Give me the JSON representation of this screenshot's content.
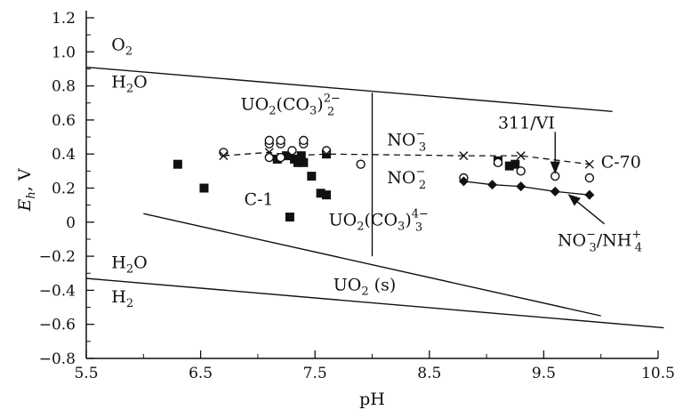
{
  "chart_data": {
    "type": "scatter",
    "xlabel": "pH",
    "ylabel": "E_h, V",
    "xlim": [
      5.5,
      10.6
    ],
    "ylim": [
      -0.8,
      1.25
    ],
    "x_ticks": [
      "5.5",
      "6.5",
      "7.5",
      "8.5",
      "9.5",
      "10.5"
    ],
    "y_ticks": [
      "−0.8",
      "−0.6",
      "−0.4",
      "−0.2",
      "0",
      "0.2",
      "0.4",
      "0.6",
      "0.8",
      "1.0",
      "1.2"
    ],
    "grid": false,
    "series": [
      {
        "marker": "filled-square",
        "points": [
          [
            6.3,
            0.34
          ],
          [
            6.53,
            0.2
          ],
          [
            7.17,
            0.37
          ],
          [
            7.25,
            0.39
          ],
          [
            7.32,
            0.37
          ],
          [
            7.35,
            0.35
          ],
          [
            7.38,
            0.39
          ],
          [
            7.4,
            0.35
          ],
          [
            7.47,
            0.27
          ],
          [
            7.28,
            0.03
          ],
          [
            7.55,
            0.17
          ],
          [
            7.6,
            0.16
          ],
          [
            7.6,
            0.4
          ],
          [
            9.1,
            0.36
          ],
          [
            9.2,
            0.33
          ],
          [
            9.25,
            0.34
          ]
        ]
      },
      {
        "marker": "open-circle",
        "points": [
          [
            6.7,
            0.41
          ],
          [
            7.1,
            0.38
          ],
          [
            7.1,
            0.46
          ],
          [
            7.1,
            0.48
          ],
          [
            7.2,
            0.38
          ],
          [
            7.2,
            0.46
          ],
          [
            7.2,
            0.48
          ],
          [
            7.3,
            0.42
          ],
          [
            7.4,
            0.46
          ],
          [
            7.4,
            0.48
          ],
          [
            7.6,
            0.42
          ],
          [
            7.9,
            0.34
          ],
          [
            8.8,
            0.26
          ],
          [
            9.1,
            0.35
          ],
          [
            9.3,
            0.3
          ],
          [
            9.6,
            0.27
          ],
          [
            9.9,
            0.26
          ]
        ]
      },
      {
        "marker": "cross",
        "line": "dashed",
        "points": [
          [
            6.7,
            0.39
          ],
          [
            7.1,
            0.41
          ],
          [
            7.3,
            0.39
          ],
          [
            7.6,
            0.4
          ],
          [
            8.8,
            0.39
          ],
          [
            9.3,
            0.39
          ],
          [
            9.9,
            0.34
          ]
        ]
      },
      {
        "marker": "filled-diamond",
        "line": "solid",
        "points": [
          [
            8.8,
            0.24
          ],
          [
            9.05,
            0.22
          ],
          [
            9.3,
            0.21
          ],
          [
            9.6,
            0.18
          ],
          [
            9.9,
            0.16
          ]
        ]
      }
    ],
    "boundaries": [
      {
        "points": [
          [
            5.5,
            0.91
          ],
          [
            10.1,
            0.65
          ]
        ]
      },
      {
        "points": [
          [
            8.0,
            0.76
          ],
          [
            8.0,
            -0.2
          ]
        ]
      },
      {
        "points": [
          [
            6.0,
            0.05
          ],
          [
            10.0,
            -0.55
          ]
        ]
      },
      {
        "points": [
          [
            5.5,
            -0.33
          ],
          [
            10.55,
            -0.62
          ]
        ]
      }
    ],
    "annotations": [
      {
        "name": "o2",
        "text": "O",
        "sub": "2",
        "x": 5.72,
        "y": 1.01
      },
      {
        "name": "h2o-upper",
        "text": "H",
        "sub": "2",
        "tail": "O",
        "x": 5.72,
        "y": 0.79
      },
      {
        "name": "uo2co3-2",
        "text": "UO",
        "sub": "2",
        "tail": "(CO",
        "sub2": "3",
        "tail2": ")",
        "subsup_sub": "2",
        "subsup_sup": "2−",
        "x": 6.85,
        "y": 0.66
      },
      {
        "name": "no3",
        "text": "NO",
        "subsup_sub": "3",
        "subsup_sup": "−",
        "x": 8.13,
        "y": 0.45
      },
      {
        "name": "no2",
        "text": "NO",
        "subsup_sub": "2",
        "subsup_sup": "−",
        "x": 8.13,
        "y": 0.23
      },
      {
        "name": "c1",
        "text": "C-1",
        "x": 6.88,
        "y": 0.1
      },
      {
        "name": "uo2co3-4",
        "text": "UO",
        "sub": "2",
        "tail": "(CO",
        "sub2": "3",
        "tail2": ")",
        "subsup_sub": "3",
        "subsup_sup": "4−",
        "x": 7.62,
        "y": -0.02
      },
      {
        "name": "h2o-lower",
        "text": "H",
        "sub": "2",
        "tail": "O",
        "x": 5.72,
        "y": -0.27
      },
      {
        "name": "h2",
        "text": "H",
        "sub": "2",
        "x": 5.72,
        "y": -0.47
      },
      {
        "name": "uo2s",
        "text": "UO",
        "sub": "2",
        "tail": " (s)",
        "x": 7.66,
        "y": -0.4
      },
      {
        "name": "label-311vi",
        "text": "311/VI",
        "x": 9.1,
        "y": 0.55
      },
      {
        "name": "c70",
        "text": "C-70",
        "x": 10.0,
        "y": 0.32
      },
      {
        "name": "no3-nh4",
        "text": "NO",
        "subsup_sub": "3",
        "subsup_sup": "−",
        "tail3": "/NH",
        "subsup2_sub": "4",
        "subsup2_sup": "+",
        "x": 9.62,
        "y": -0.14
      }
    ],
    "arrows": [
      {
        "from": [
          9.6,
          0.53
        ],
        "to": [
          9.6,
          0.29
        ]
      },
      {
        "from": [
          10.03,
          -0.01
        ],
        "to": [
          9.72,
          0.16
        ]
      }
    ]
  }
}
